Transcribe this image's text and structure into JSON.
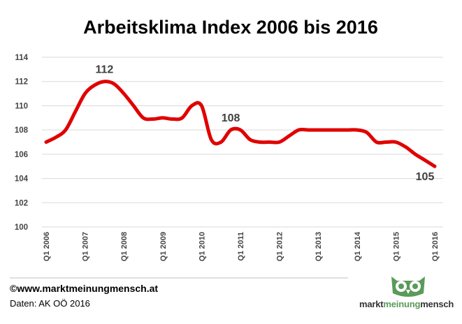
{
  "chart_data": {
    "type": "line",
    "title": "Arbeitsklima Index 2006 bis 2016",
    "xlabel": "",
    "ylabel": "",
    "ylim": [
      100,
      114
    ],
    "yticks": [
      100,
      102,
      104,
      106,
      108,
      110,
      112,
      114
    ],
    "x_tick_labels": [
      "Q1 2006",
      "Q1 2007",
      "Q1 2008",
      "Q1 2009",
      "Q1 2010",
      "Q1 2011",
      "Q1 2012",
      "Q1 2013",
      "Q1 2014",
      "Q1 2015",
      "Q1 2016"
    ],
    "x": [
      2006.0,
      2006.25,
      2006.5,
      2006.75,
      2007.0,
      2007.25,
      2007.5,
      2007.75,
      2008.0,
      2008.25,
      2008.5,
      2008.75,
      2009.0,
      2009.25,
      2009.5,
      2009.75,
      2010.0,
      2010.25,
      2010.5,
      2010.75,
      2011.0,
      2011.25,
      2011.5,
      2011.75,
      2012.0,
      2012.25,
      2012.5,
      2012.75,
      2013.0,
      2013.25,
      2013.5,
      2013.75,
      2014.0,
      2014.25,
      2014.5,
      2014.75,
      2015.0,
      2015.25,
      2015.5,
      2015.75,
      2016.0
    ],
    "series": [
      {
        "values": [
          107,
          107.4,
          108,
          109.5,
          111,
          111.7,
          112,
          111.8,
          111,
          110,
          109,
          108.9,
          109,
          108.9,
          109,
          110,
          110,
          107.2,
          107,
          108,
          108,
          107.2,
          107,
          107,
          107,
          107.5,
          108,
          108,
          108,
          108,
          108,
          108,
          108,
          107.8,
          107,
          107,
          107,
          106.6,
          106,
          105.5,
          105
        ],
        "color": "#e00000"
      }
    ],
    "data_labels": [
      {
        "x": 2007.5,
        "y": 112,
        "text": "112"
      },
      {
        "x": 2010.75,
        "y": 108,
        "text": "108"
      },
      {
        "x": 2016.0,
        "y": 105,
        "text": "105"
      }
    ],
    "grid": true,
    "legend": "none"
  },
  "footer": {
    "url": "©www.marktmeinungmensch.at",
    "source": "Daten: AK OÖ 2016"
  },
  "logo": {
    "word1": "markt",
    "word2": "meinung",
    "word3": "mensch",
    "icon": "owl-icon",
    "accent_color": "#5a9a5a"
  }
}
